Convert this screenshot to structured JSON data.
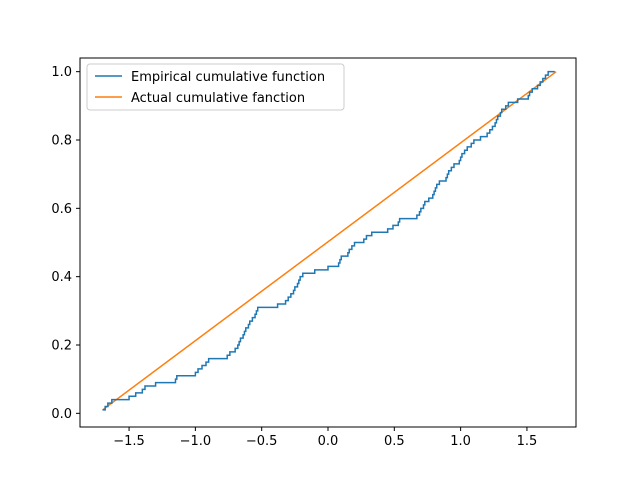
{
  "chart_data": {
    "type": "line",
    "title": "",
    "xlabel": "",
    "ylabel": "",
    "xlim": [
      -1.87,
      1.87
    ],
    "ylim": [
      -0.04,
      1.04
    ],
    "x_ticks": [
      -1.5,
      -1.0,
      -0.5,
      0.0,
      0.5,
      1.0,
      1.5
    ],
    "x_tick_labels": [
      "−1.5",
      "−1.0",
      "−0.5",
      "0.0",
      "0.5",
      "1.0",
      "1.5"
    ],
    "y_ticks": [
      0.0,
      0.2,
      0.4,
      0.6,
      0.8,
      1.0
    ],
    "y_tick_labels": [
      "0.0",
      "0.2",
      "0.4",
      "0.6",
      "0.8",
      "1.0"
    ],
    "grid": false,
    "legend": {
      "placement": "top-left"
    },
    "series": [
      {
        "name": "Empirical cumulative function",
        "color": "#1f77b4",
        "style": "step",
        "points": [
          [
            -1.7,
            0.01
          ],
          [
            -1.68,
            0.02
          ],
          [
            -1.66,
            0.03
          ],
          [
            -1.63,
            0.04
          ],
          [
            -1.55,
            0.04
          ],
          [
            -1.5,
            0.05
          ],
          [
            -1.45,
            0.06
          ],
          [
            -1.4,
            0.07
          ],
          [
            -1.38,
            0.08
          ],
          [
            -1.3,
            0.09
          ],
          [
            -1.15,
            0.1
          ],
          [
            -1.14,
            0.11
          ],
          [
            -1.0,
            0.12
          ],
          [
            -0.98,
            0.13
          ],
          [
            -0.95,
            0.14
          ],
          [
            -0.92,
            0.15
          ],
          [
            -0.9,
            0.16
          ],
          [
            -0.76,
            0.17
          ],
          [
            -0.74,
            0.18
          ],
          [
            -0.7,
            0.19
          ],
          [
            -0.68,
            0.2
          ],
          [
            -0.67,
            0.21
          ],
          [
            -0.66,
            0.22
          ],
          [
            -0.64,
            0.23
          ],
          [
            -0.63,
            0.24
          ],
          [
            -0.62,
            0.25
          ],
          [
            -0.6,
            0.26
          ],
          [
            -0.59,
            0.27
          ],
          [
            -0.57,
            0.28
          ],
          [
            -0.55,
            0.29
          ],
          [
            -0.54,
            0.3
          ],
          [
            -0.53,
            0.31
          ],
          [
            -0.38,
            0.32
          ],
          [
            -0.32,
            0.33
          ],
          [
            -0.3,
            0.34
          ],
          [
            -0.28,
            0.35
          ],
          [
            -0.26,
            0.36
          ],
          [
            -0.25,
            0.37
          ],
          [
            -0.23,
            0.38
          ],
          [
            -0.22,
            0.39
          ],
          [
            -0.21,
            0.4
          ],
          [
            -0.19,
            0.41
          ],
          [
            -0.1,
            0.42
          ],
          [
            0.0,
            0.43
          ],
          [
            0.08,
            0.44
          ],
          [
            0.09,
            0.45
          ],
          [
            0.1,
            0.46
          ],
          [
            0.15,
            0.47
          ],
          [
            0.16,
            0.48
          ],
          [
            0.18,
            0.49
          ],
          [
            0.2,
            0.5
          ],
          [
            0.27,
            0.51
          ],
          [
            0.29,
            0.52
          ],
          [
            0.33,
            0.53
          ],
          [
            0.45,
            0.54
          ],
          [
            0.49,
            0.55
          ],
          [
            0.53,
            0.56
          ],
          [
            0.54,
            0.57
          ],
          [
            0.67,
            0.58
          ],
          [
            0.69,
            0.59
          ],
          [
            0.7,
            0.6
          ],
          [
            0.72,
            0.61
          ],
          [
            0.73,
            0.62
          ],
          [
            0.76,
            0.63
          ],
          [
            0.79,
            0.64
          ],
          [
            0.8,
            0.65
          ],
          [
            0.81,
            0.66
          ],
          [
            0.82,
            0.67
          ],
          [
            0.84,
            0.68
          ],
          [
            0.89,
            0.69
          ],
          [
            0.9,
            0.7
          ],
          [
            0.91,
            0.71
          ],
          [
            0.93,
            0.72
          ],
          [
            0.95,
            0.73
          ],
          [
            0.99,
            0.74
          ],
          [
            1.0,
            0.75
          ],
          [
            1.01,
            0.76
          ],
          [
            1.03,
            0.77
          ],
          [
            1.05,
            0.78
          ],
          [
            1.08,
            0.79
          ],
          [
            1.1,
            0.8
          ],
          [
            1.15,
            0.81
          ],
          [
            1.2,
            0.82
          ],
          [
            1.22,
            0.83
          ],
          [
            1.24,
            0.84
          ],
          [
            1.26,
            0.85
          ],
          [
            1.27,
            0.86
          ],
          [
            1.28,
            0.87
          ],
          [
            1.3,
            0.88
          ],
          [
            1.31,
            0.89
          ],
          [
            1.34,
            0.9
          ],
          [
            1.36,
            0.91
          ],
          [
            1.43,
            0.92
          ],
          [
            1.51,
            0.93
          ],
          [
            1.52,
            0.94
          ],
          [
            1.54,
            0.95
          ],
          [
            1.58,
            0.96
          ],
          [
            1.6,
            0.97
          ],
          [
            1.62,
            0.98
          ],
          [
            1.64,
            0.99
          ],
          [
            1.66,
            1.0
          ],
          [
            1.71,
            1.0
          ]
        ]
      },
      {
        "name": "Actual cumulative fanction",
        "color": "#ff7f0e",
        "style": "line",
        "points": [
          [
            -1.7,
            0.01
          ],
          [
            1.72,
            1.0
          ]
        ]
      }
    ]
  }
}
